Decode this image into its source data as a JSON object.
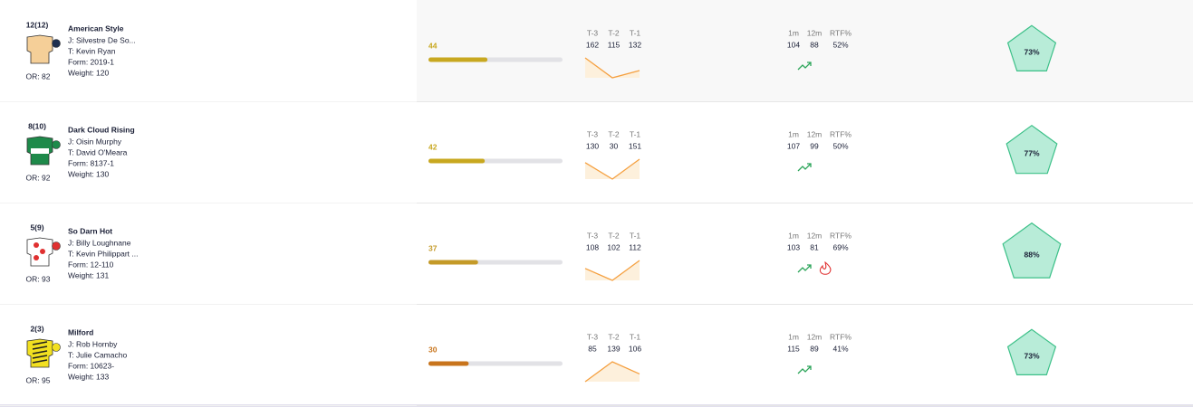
{
  "columns": {
    "trend": [
      "T-3",
      "T-2",
      "T-1"
    ],
    "stats": [
      "1m",
      "12m",
      "RTF%"
    ]
  },
  "score_range": [
    0,
    100
  ],
  "runners": [
    {
      "number": "12(12)",
      "name": "American Style",
      "jockey": "J: Silvestre De So...",
      "trainer": "T: Kevin Ryan",
      "form": "Form: 2019-1",
      "weight": "Weight: 120",
      "or": "OR: 82",
      "silk": "#f5cf98",
      "cap": "#1f3050",
      "score": 44,
      "score_color": "#c8a820",
      "trend": [
        162,
        115,
        132
      ],
      "stats": [
        104,
        88,
        "52%"
      ],
      "hot": false,
      "rating": {
        "value": 73,
        "label": "73%"
      }
    },
    {
      "number": "8(10)",
      "name": "Dark Cloud Rising",
      "jockey": "J: Oisin Murphy",
      "trainer": "T: David O'Meara",
      "form": "Form: 8137-1",
      "weight": "Weight: 130",
      "or": "OR: 92",
      "silk": "#1e8a4a",
      "cap": "#1e8a4a",
      "score": 42,
      "score_color": "#c8a820",
      "trend": [
        130,
        30,
        151
      ],
      "stats": [
        107,
        99,
        "50%"
      ],
      "hot": false,
      "rating": {
        "value": 77,
        "label": "77%"
      }
    },
    {
      "number": "5(9)",
      "name": "So Darn Hot",
      "jockey": "J: Billy Loughnane",
      "trainer": "T: Kevin Philippart ...",
      "form": "Form: 12-110",
      "weight": "Weight: 131",
      "or": "OR: 93",
      "silk": "#ffffff",
      "cap": "#e03030",
      "score": 37,
      "score_color": "#c49a28",
      "trend": [
        108,
        102,
        112
      ],
      "stats": [
        103,
        81,
        "69%"
      ],
      "hot": true,
      "rating": {
        "value": 88,
        "label": "88%"
      }
    },
    {
      "number": "2(3)",
      "name": "Milford",
      "jockey": "J: Rob Hornby",
      "trainer": "T: Julie Camacho",
      "form": "Form: 10623-",
      "weight": "Weight: 133",
      "or": "OR: 95",
      "silk": "#f2e020",
      "cap": "#f2e020",
      "score": 30,
      "score_color": "#c8741c",
      "trend": [
        85,
        139,
        106
      ],
      "stats": [
        115,
        89,
        "41%"
      ],
      "hot": false,
      "rating": {
        "value": 73,
        "label": "73%"
      }
    }
  ]
}
